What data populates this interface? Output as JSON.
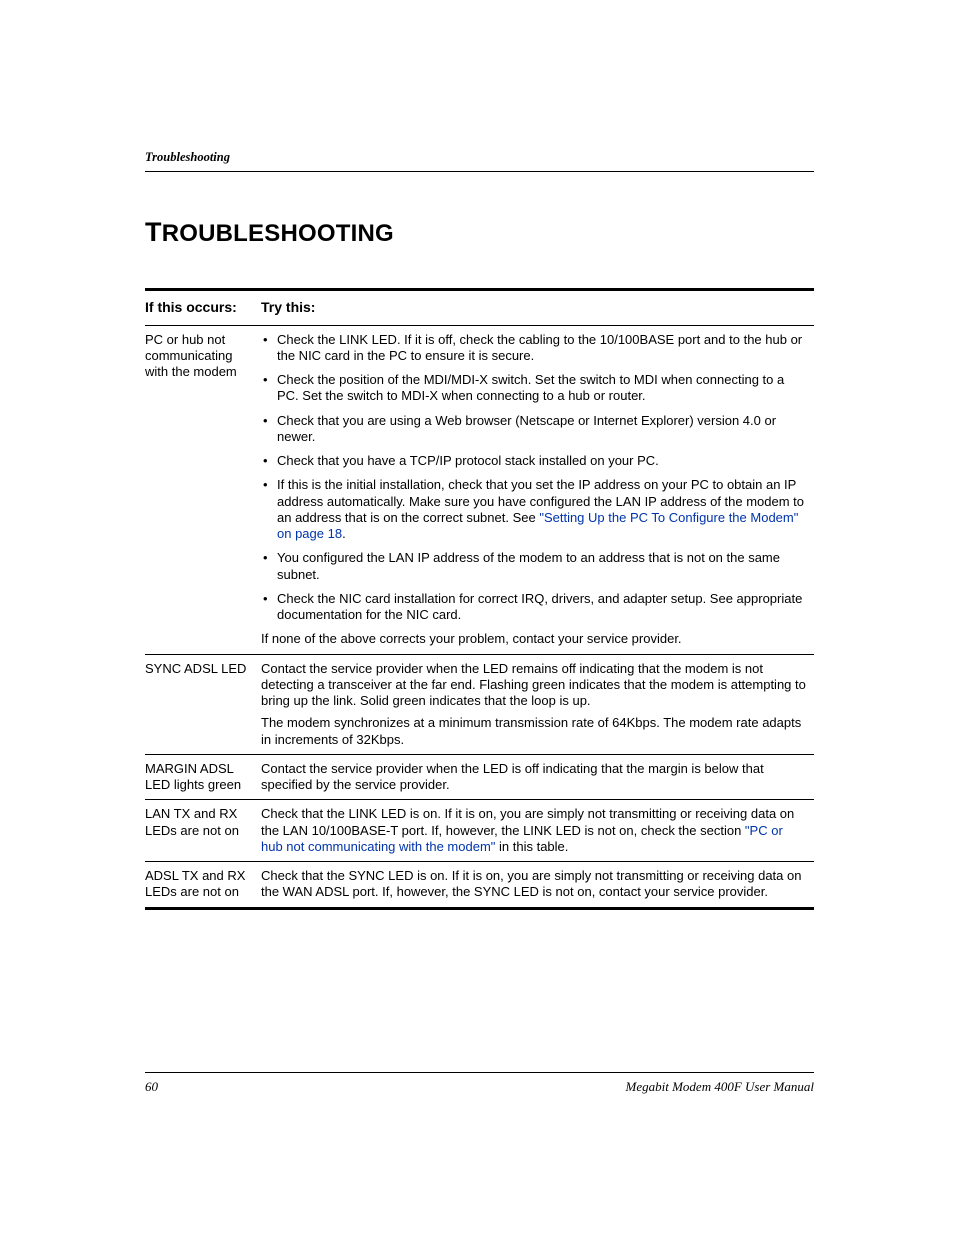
{
  "header": {
    "running": "Troubleshooting"
  },
  "title": {
    "first": "T",
    "rest": "ROUBLESHOOTING"
  },
  "table": {
    "head": {
      "if": "If this occurs:",
      "try": "Try this:"
    },
    "rows": [
      {
        "if": "PC or hub not communicating with the modem",
        "bullets": [
          {
            "t": "Check the LINK LED. If it is off, check the cabling to the 10/100BASE port and to the hub or the NIC card in the PC to ensure it is secure."
          },
          {
            "t": "Check the position of the MDI/MDI-X switch. Set the switch to MDI when connecting to a PC. Set the switch to MDI-X when connecting to a hub or router."
          },
          {
            "t": "Check that you are using a Web browser (Netscape or Internet Explorer) version 4.0 or newer."
          },
          {
            "t": "Check that you have a TCP/IP protocol stack installed on your PC."
          },
          {
            "pre": "If this is the initial installation, check that you set the IP address on your PC to obtain an IP address automatically. Make sure you have configured the LAN IP address of the modem to an address that is on the correct subnet. See ",
            "link": "\"Setting Up the PC To Configure the Modem\" on page 18",
            "post": "."
          },
          {
            "t": "You configured the LAN IP address of the modem to an address that is not on the same subnet."
          },
          {
            "t": "Check the NIC card installation for correct IRQ, drivers, and adapter setup. See appropriate documentation for the NIC card."
          }
        ],
        "after": "If none of the above corrects your problem, contact your service provider."
      },
      {
        "if": "SYNC ADSL LED",
        "paras": [
          "Contact the service provider when the LED remains off indicating that the modem is not detecting a transceiver at the far end. Flashing green indicates that the modem is attempting to bring up the link. Solid green indicates that the loop is up.",
          "The modem synchronizes at a minimum transmission rate of 64Kbps. The modem rate adapts in increments of 32Kbps."
        ]
      },
      {
        "if": "MARGIN ADSL LED lights green",
        "paras": [
          "Contact the service provider when the LED is off indicating that the margin is below that specified by the service provider."
        ]
      },
      {
        "if": "LAN TX and RX LEDs are not on",
        "mixed": {
          "pre": "Check that the LINK LED is on. If it is on, you are simply not transmitting or receiving data on the LAN 10/100BASE-T port. If, however, the LINK LED is not on, check the section ",
          "link": "\"PC or hub not communicating with the modem\"",
          "post": " in this table."
        }
      },
      {
        "if": "ADSL TX and RX LEDs are not on",
        "paras": [
          "Check that the SYNC LED is on. If it is on, you are simply not transmitting or receiving data on the WAN ADSL port. If, however, the SYNC LED is not on, contact your service provider."
        ]
      }
    ]
  },
  "footer": {
    "page": "60",
    "doc": "Megabit Modem 400F User Manual"
  },
  "colors": {
    "link": "#0033aa",
    "text": "#000000",
    "bg": "#ffffff"
  }
}
